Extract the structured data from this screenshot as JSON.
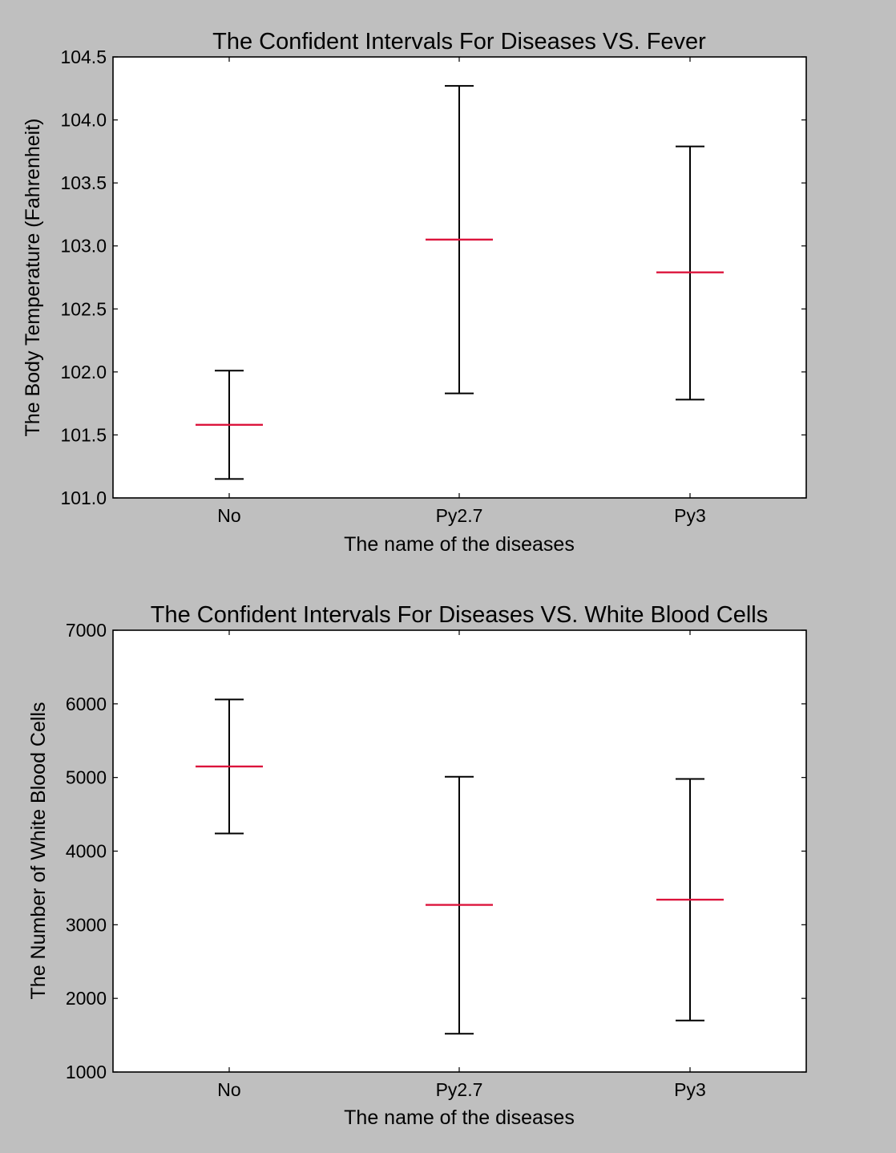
{
  "chart_data": [
    {
      "type": "errorbar",
      "title": "The Confident Intervals For Diseases VS. Fever",
      "xlabel": "The name of the diseases",
      "ylabel": "The Body Temperature (Fahrenheit)",
      "categories": [
        "No",
        "Py2.7",
        "Py3"
      ],
      "means": [
        101.58,
        103.05,
        102.79
      ],
      "lower": [
        101.15,
        101.83,
        101.78
      ],
      "upper": [
        102.01,
        104.27,
        103.79
      ],
      "ylim": [
        101.0,
        104.5
      ],
      "yticks": [
        101.0,
        101.5,
        102.0,
        102.5,
        103.0,
        103.5,
        104.0,
        104.5
      ],
      "ytick_labels": [
        "101.0",
        "101.5",
        "102.0",
        "102.5",
        "103.0",
        "103.5",
        "104.0",
        "104.5"
      ],
      "grid": false,
      "colors": {
        "mean": "#dc143c",
        "interval": "#000000",
        "background": "#ffffff"
      }
    },
    {
      "type": "errorbar",
      "title": "The Confident Intervals For Diseases VS. White Blood Cells",
      "xlabel": "The name of the diseases",
      "ylabel": "The Number of White Blood Cells",
      "categories": [
        "No",
        "Py2.7",
        "Py3"
      ],
      "means": [
        5150,
        3270,
        3340
      ],
      "lower": [
        4240,
        1520,
        1700
      ],
      "upper": [
        6060,
        5010,
        4980
      ],
      "ylim": [
        1000,
        7000
      ],
      "yticks": [
        1000,
        2000,
        3000,
        4000,
        5000,
        6000,
        7000
      ],
      "ytick_labels": [
        "1000",
        "2000",
        "3000",
        "4000",
        "5000",
        "6000",
        "7000"
      ],
      "grid": false,
      "colors": {
        "mean": "#dc143c",
        "interval": "#000000",
        "background": "#ffffff"
      }
    }
  ]
}
